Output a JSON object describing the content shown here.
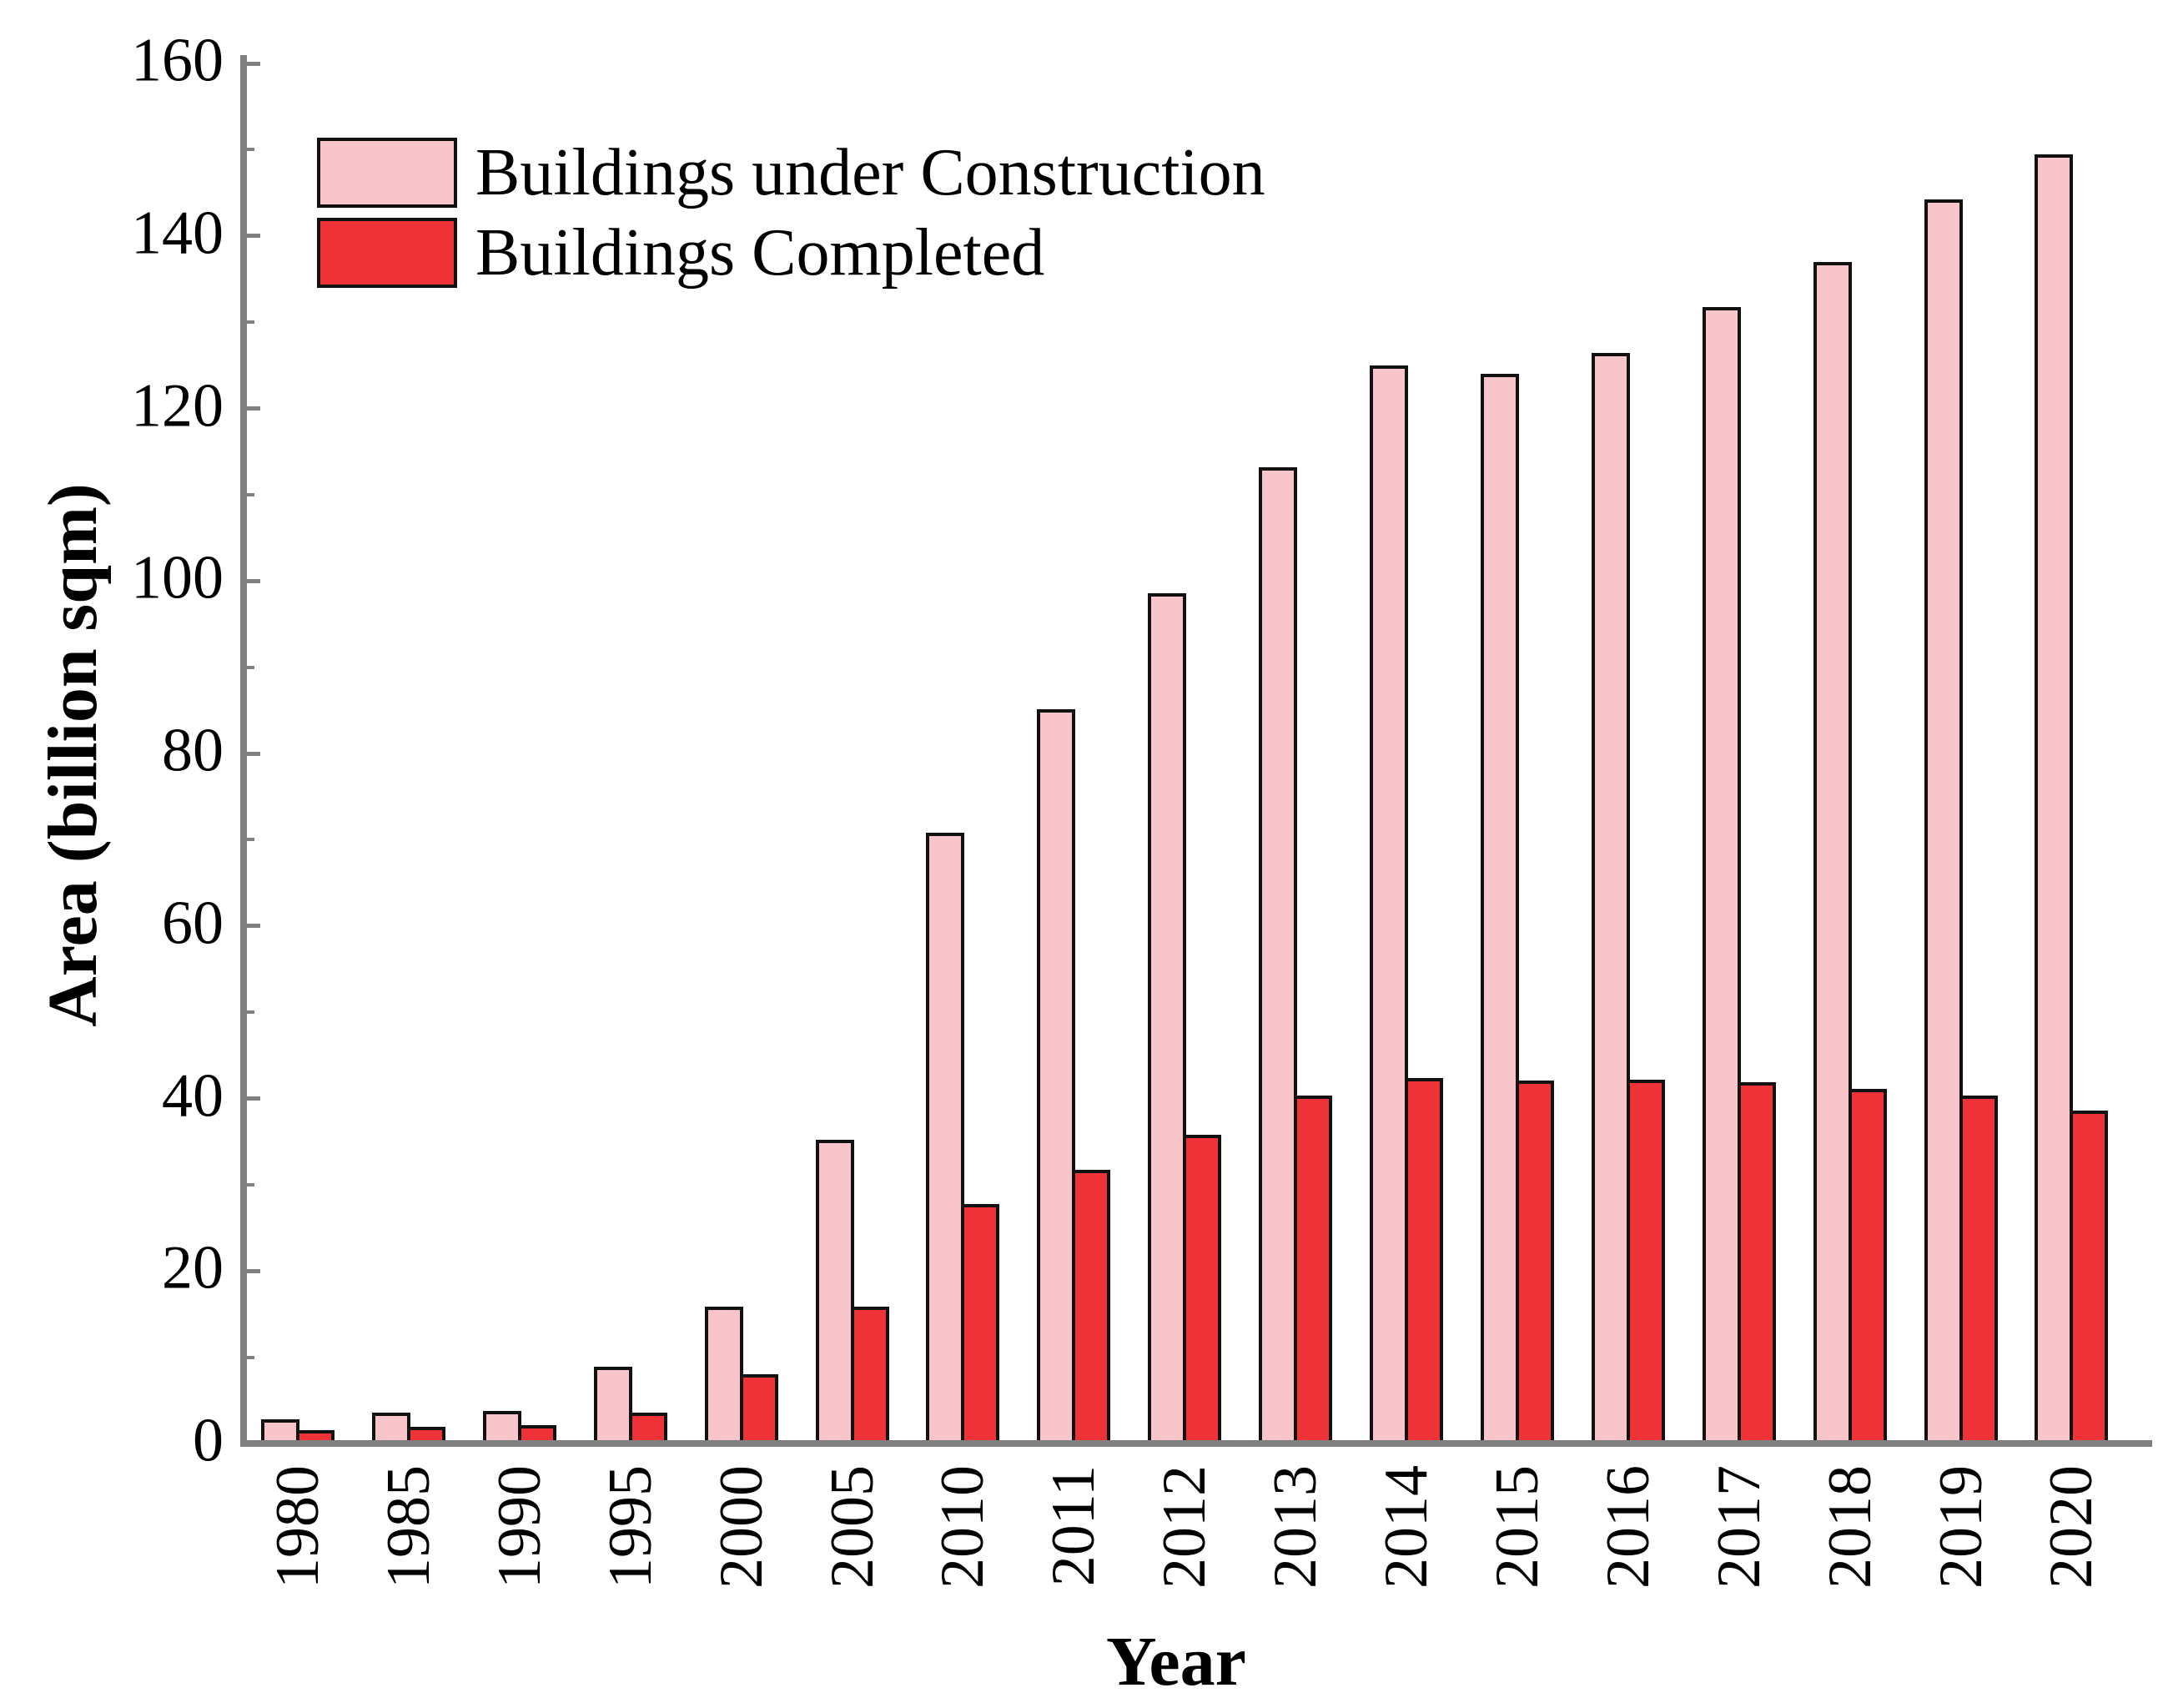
{
  "chart_data": {
    "type": "bar",
    "title": "",
    "xlabel": "Year",
    "ylabel": "Area (billion sqm)",
    "ylim": [
      0,
      160
    ],
    "y_major_ticks": [
      0,
      20,
      40,
      60,
      80,
      100,
      120,
      140,
      160
    ],
    "y_minor_ticks": [
      10,
      30,
      50,
      70,
      90,
      110,
      130,
      150
    ],
    "grid": false,
    "legend_position": "upper-left",
    "axis_color": "#808080",
    "bar_outline_color": "#111111",
    "categories": [
      "1980",
      "1985",
      "1990",
      "1995",
      "2000",
      "2005",
      "2010",
      "2011",
      "2012",
      "2013",
      "2014",
      "2015",
      "2016",
      "2017",
      "2018",
      "2019",
      "2020"
    ],
    "series": [
      {
        "name": "Buildings under Construction",
        "color": "#F7C5CA",
        "values": [
          2.8,
          3.6,
          3.8,
          8.9,
          15.9,
          35.2,
          70.8,
          85.1,
          98.6,
          113.2,
          125.0,
          124.0,
          126.4,
          131.8,
          137.0,
          144.2,
          149.5
        ]
      },
      {
        "name": "Buildings Completed",
        "color": "#EE3237",
        "values": [
          1.6,
          1.9,
          2.1,
          3.6,
          8.0,
          15.9,
          27.8,
          31.7,
          35.8,
          40.3,
          42.4,
          42.1,
          42.2,
          41.9,
          41.1,
          40.3,
          38.6
        ]
      }
    ]
  }
}
